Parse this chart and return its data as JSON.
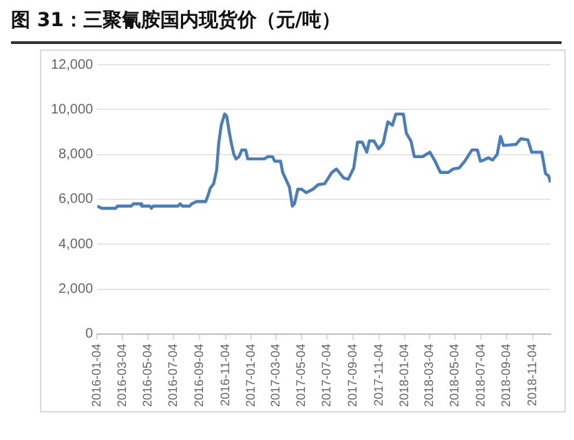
{
  "chart_data": {
    "type": "line",
    "title": "图 31：三聚氰胺国内现货价（元/吨）",
    "x": [
      "2016-01-04",
      "2016-01-15",
      "2016-02-17",
      "2016-02-21",
      "2016-03-25",
      "2016-03-30",
      "2016-04-16",
      "2016-04-19",
      "2016-05-08",
      "2016-05-12",
      "2016-05-16",
      "2016-07-14",
      "2016-07-19",
      "2016-07-25",
      "2016-08-11",
      "2016-08-16",
      "2016-08-27",
      "2016-09-18",
      "2016-09-24",
      "2016-09-29",
      "2016-10-07",
      "2016-10-14",
      "2016-10-19",
      "2016-10-25",
      "2016-11-02",
      "2016-11-07",
      "2016-11-13",
      "2016-11-18",
      "2016-11-24",
      "2016-11-29",
      "2016-12-06",
      "2016-12-13",
      "2016-12-22",
      "2016-12-27",
      "2017-02-04",
      "2017-02-13",
      "2017-02-24",
      "2017-03-01",
      "2017-03-15",
      "2017-03-20",
      "2017-04-05",
      "2017-04-12",
      "2017-04-17",
      "2017-04-25",
      "2017-05-04",
      "2017-05-15",
      "2017-05-31",
      "2017-06-12",
      "2017-06-28",
      "2017-07-15",
      "2017-07-26",
      "2017-08-12",
      "2017-08-23",
      "2017-09-05",
      "2017-09-14",
      "2017-09-25",
      "2017-10-06",
      "2017-10-12",
      "2017-10-23",
      "2017-11-03",
      "2017-11-14",
      "2017-11-25",
      "2017-12-06",
      "2017-12-14",
      "2018-01-01",
      "2018-01-08",
      "2018-01-19",
      "2018-01-27",
      "2018-02-16",
      "2018-03-05",
      "2018-03-16",
      "2018-03-30",
      "2018-04-18",
      "2018-04-29",
      "2018-05-14",
      "2018-05-27",
      "2018-06-13",
      "2018-06-26",
      "2018-07-03",
      "2018-07-11",
      "2018-07-22",
      "2018-08-01",
      "2018-08-12",
      "2018-08-20",
      "2018-08-27",
      "2018-09-26",
      "2018-10-07",
      "2018-10-24",
      "2018-11-02",
      "2018-11-26",
      "2018-12-05",
      "2018-12-12",
      "2018-12-17"
    ],
    "series": [
      {
        "color": "#4a7ebb",
        "values": [
          5700,
          5600,
          5600,
          5700,
          5700,
          5800,
          5800,
          5700,
          5700,
          5600,
          5700,
          5700,
          5800,
          5700,
          5700,
          5800,
          5900,
          5900,
          6200,
          6500,
          6700,
          7300,
          8500,
          9300,
          9800,
          9700,
          9000,
          8500,
          8000,
          7800,
          7900,
          8200,
          8200,
          7800,
          7800,
          7900,
          7900,
          7700,
          7700,
          7200,
          6550,
          5700,
          5800,
          6450,
          6450,
          6300,
          6450,
          6650,
          6700,
          7200,
          7350,
          6950,
          6900,
          7400,
          8550,
          8550,
          8100,
          8600,
          8600,
          8250,
          8500,
          9450,
          9300,
          9800,
          9800,
          8950,
          8600,
          7900,
          7900,
          8100,
          7750,
          7200,
          7200,
          7350,
          7400,
          7700,
          8200,
          8200,
          7700,
          7750,
          7850,
          7750,
          8000,
          8800,
          8400,
          8450,
          8700,
          8650,
          8100,
          8100,
          7150,
          7050,
          6750
        ]
      }
    ],
    "xlim": [
      "2016-01-04",
      "2018-12-17"
    ],
    "xticks": [
      "2016-01-04",
      "2016-03-04",
      "2016-05-04",
      "2016-07-04",
      "2016-09-04",
      "2016-11-04",
      "2017-01-04",
      "2017-03-04",
      "2017-05-04",
      "2017-07-04",
      "2017-09-04",
      "2017-11-04",
      "2018-01-04",
      "2018-03-04",
      "2018-05-04",
      "2018-07-04",
      "2018-09-04",
      "2018-11-04"
    ],
    "ylim": [
      0,
      12000
    ],
    "yticks": [
      {
        "value": 0,
        "label": "0"
      },
      {
        "value": 2000,
        "label": "2,000"
      },
      {
        "value": 4000,
        "label": "4,000"
      },
      {
        "value": 6000,
        "label": "6,000"
      },
      {
        "value": 8000,
        "label": "8,000"
      },
      {
        "value": 10000,
        "label": "10,000"
      },
      {
        "value": 12000,
        "label": "12,000"
      }
    ],
    "grid": "y",
    "legend": false,
    "marker": "none",
    "line_style": "solid"
  }
}
